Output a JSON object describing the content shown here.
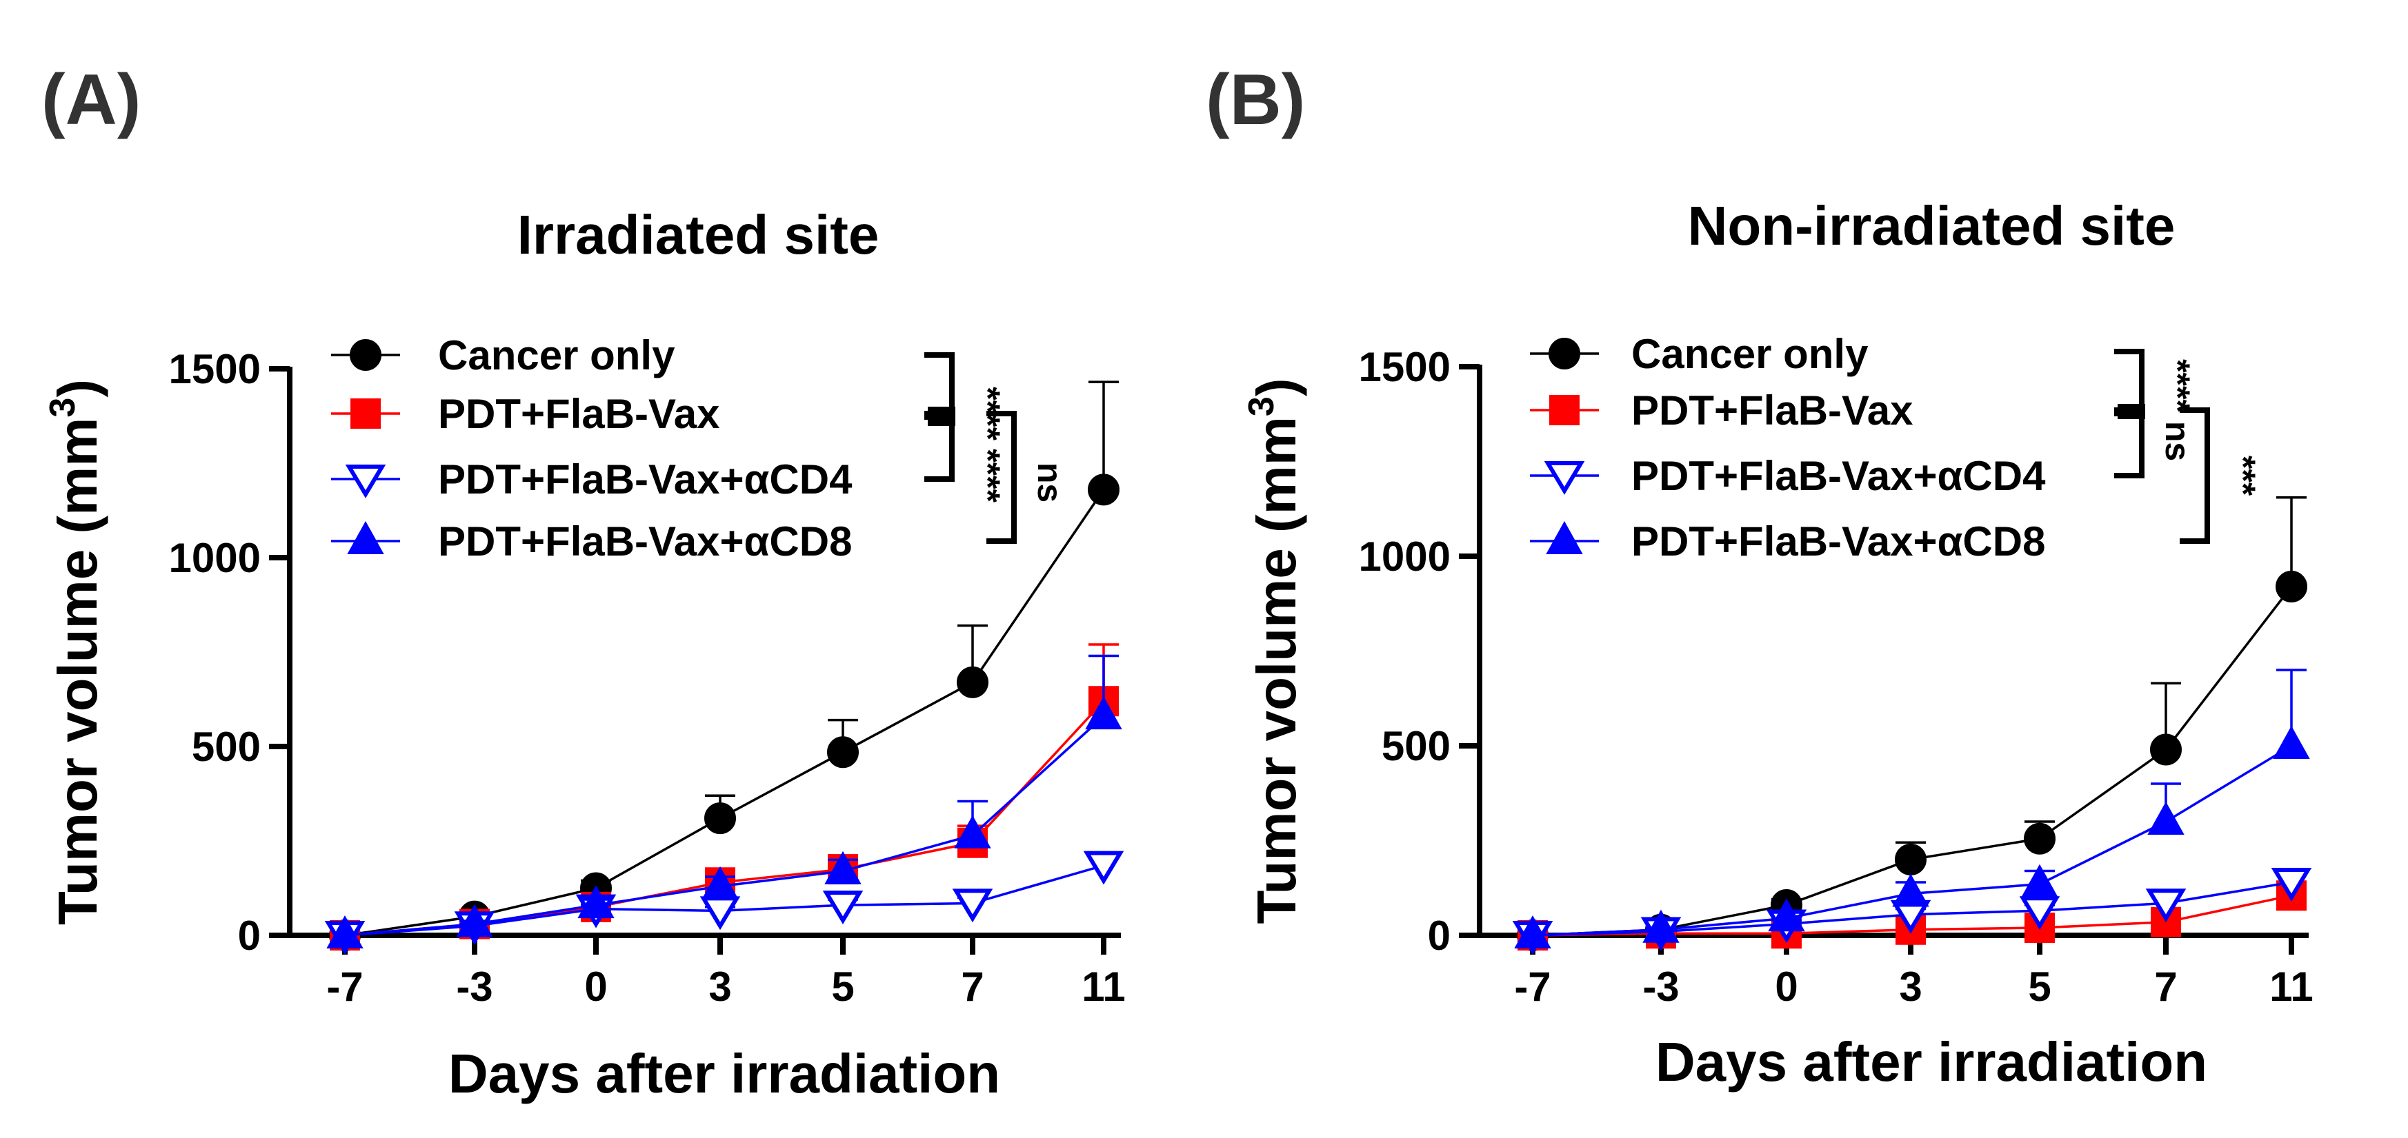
{
  "panels": [
    {
      "label": "(A)"
    },
    {
      "label": "(B)"
    }
  ],
  "legend": [
    {
      "name": "Cancer only",
      "color": "#000000",
      "marker": "circle",
      "filled": true
    },
    {
      "name": "PDT+FlaB-Vax",
      "color": "#ff0000",
      "marker": "square",
      "filled": true
    },
    {
      "name": "PDT+FlaB-Vax+αCD4",
      "color": "#0000ff",
      "marker": "triangle-down",
      "filled": false
    },
    {
      "name": "PDT+FlaB-Vax+αCD8",
      "color": "#0000ff",
      "marker": "triangle-up",
      "filled": true
    }
  ],
  "chart_data": [
    {
      "type": "line",
      "title": "Irradiated site",
      "xlabel": "Days after irradiation",
      "ylabel": "Tumor volume (mm",
      "ylabel_superscript": "3",
      "ylabel_close": ")",
      "categories": [
        "-7",
        "-3",
        "0",
        "3",
        "5",
        "7",
        "11"
      ],
      "ylim": [
        0,
        1500
      ],
      "yticks": [
        0,
        500,
        1000,
        1500
      ],
      "series": [
        {
          "name": "Cancer only",
          "values": [
            0,
            50,
            125,
            310,
            485,
            670,
            1180
          ],
          "errors": [
            0,
            10,
            20,
            60,
            85,
            150,
            285
          ]
        },
        {
          "name": "PDT+FlaB-Vax",
          "values": [
            0,
            30,
            75,
            140,
            175,
            245,
            620
          ],
          "errors": [
            0,
            8,
            15,
            25,
            30,
            45,
            150
          ]
        },
        {
          "name": "PDT+FlaB-Vax+αCD4",
          "values": [
            0,
            25,
            70,
            65,
            80,
            85,
            185
          ],
          "errors": [
            0,
            5,
            10,
            10,
            15,
            15,
            25
          ]
        },
        {
          "name": "PDT+FlaB-Vax+αCD8",
          "values": [
            0,
            30,
            80,
            130,
            170,
            265,
            580
          ],
          "errors": [
            0,
            8,
            15,
            25,
            30,
            90,
            160
          ]
        }
      ],
      "significance": [
        {
          "label": "****",
          "between": [
            "Cancer only",
            "PDT+FlaB-Vax"
          ]
        },
        {
          "label": "****",
          "between": [
            "Cancer only",
            "PDT+FlaB-Vax+αCD4"
          ]
        },
        {
          "label": "ns",
          "between": [
            "PDT+FlaB-Vax",
            "PDT+FlaB-Vax+αCD8"
          ]
        }
      ]
    },
    {
      "type": "line",
      "title": "Non-irradiated site",
      "xlabel": "Days after irradiation",
      "ylabel": "Tumor volume (mm",
      "ylabel_superscript": "3",
      "ylabel_close": ")",
      "categories": [
        "-7",
        "-3",
        "0",
        "3",
        "5",
        "7",
        "11"
      ],
      "ylim": [
        0,
        1500
      ],
      "yticks": [
        0,
        500,
        1000,
        1500
      ],
      "series": [
        {
          "name": "Cancer only",
          "values": [
            0,
            15,
            80,
            200,
            255,
            490,
            920
          ],
          "errors": [
            0,
            5,
            15,
            45,
            45,
            175,
            235
          ]
        },
        {
          "name": "PDT+FlaB-Vax",
          "values": [
            0,
            5,
            5,
            15,
            20,
            35,
            105
          ],
          "errors": [
            0,
            3,
            5,
            8,
            8,
            15,
            30
          ]
        },
        {
          "name": "PDT+FlaB-Vax+αCD4",
          "values": [
            0,
            10,
            30,
            55,
            65,
            85,
            140
          ],
          "errors": [
            0,
            5,
            10,
            15,
            15,
            20,
            30
          ]
        },
        {
          "name": "PDT+FlaB-Vax+αCD8",
          "values": [
            0,
            15,
            45,
            110,
            135,
            300,
            500
          ],
          "errors": [
            0,
            5,
            15,
            30,
            35,
            100,
            200
          ]
        }
      ],
      "significance": [
        {
          "label": "****",
          "between": [
            "Cancer only",
            "PDT+FlaB-Vax"
          ]
        },
        {
          "label": "ns",
          "between": [
            "PDT+FlaB-Vax",
            "PDT+FlaB-Vax+αCD4"
          ]
        },
        {
          "label": "***",
          "between": [
            "Cancer only",
            "PDT+FlaB-Vax+αCD8"
          ]
        }
      ]
    }
  ]
}
